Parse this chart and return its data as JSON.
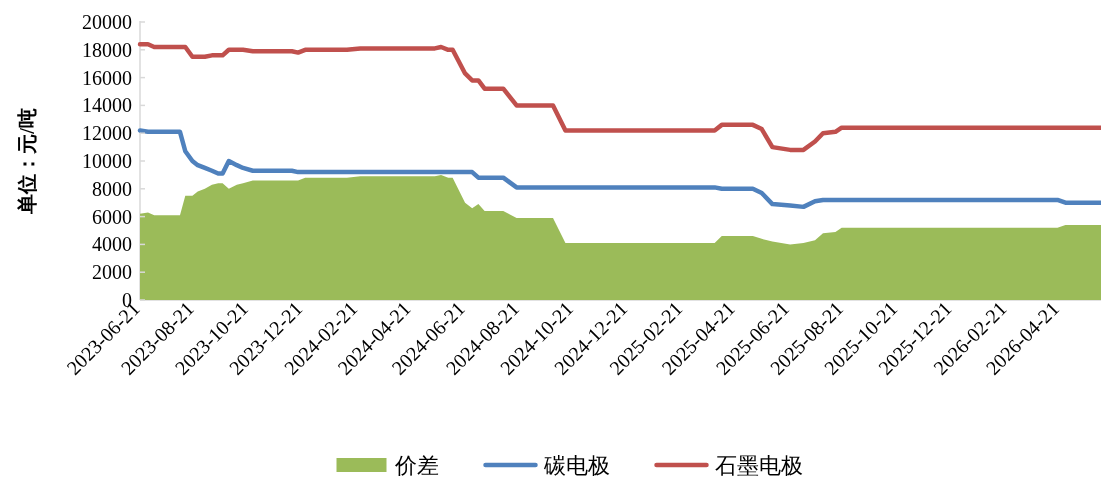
{
  "chart_data": {
    "type": "line",
    "ylabel": "单位：元/吨",
    "x": [
      "2023-06-21",
      "2023-06-30",
      "2023-07-07",
      "2023-08-05",
      "2023-08-11",
      "2023-08-19",
      "2023-08-25",
      "2023-09-02",
      "2023-09-10",
      "2023-09-17",
      "2023-09-22",
      "2023-09-29",
      "2023-10-08",
      "2023-10-15",
      "2023-10-26",
      "2023-12-09",
      "2023-12-16",
      "2023-12-24",
      "2024-02-09",
      "2024-02-24",
      "2024-05-18",
      "2024-05-25",
      "2024-06-02",
      "2024-06-07",
      "2024-06-21",
      "2024-06-29",
      "2024-07-06",
      "2024-07-13",
      "2024-08-03",
      "2024-08-18",
      "2024-09-28",
      "2024-10-12",
      "2025-03-29",
      "2025-04-06",
      "2025-05-11",
      "2025-05-21",
      "2025-06-02",
      "2025-06-22",
      "2025-07-07",
      "2025-07-20",
      "2025-07-29",
      "2025-08-12",
      "2025-08-19",
      "2026-04-19",
      "2026-04-28",
      "2026-06-07"
    ],
    "series": [
      {
        "name": "价差",
        "type": "area",
        "color": "#9bbb59",
        "values": [
          6200,
          6300,
          6100,
          6100,
          7500,
          7500,
          7800,
          8000,
          8300,
          8400,
          8400,
          8000,
          8300,
          8400,
          8600,
          8600,
          8600,
          8800,
          8800,
          8900,
          8900,
          9000,
          8800,
          8800,
          7000,
          6600,
          6900,
          6400,
          6400,
          5900,
          5900,
          4100,
          4100,
          4600,
          4600,
          4400,
          4200,
          4000,
          4100,
          4300,
          4800,
          4900,
          5200,
          5200,
          5400,
          5400
        ]
      },
      {
        "name": "碳电极",
        "color": "#4f81bd",
        "values": [
          12200,
          12100,
          12100,
          12100,
          10700,
          10000,
          9700,
          9500,
          9300,
          9100,
          9100,
          10000,
          9700,
          9500,
          9300,
          9300,
          9200,
          9200,
          9200,
          9200,
          9200,
          9200,
          9200,
          9200,
          9200,
          9200,
          8800,
          8800,
          8800,
          8100,
          8100,
          8100,
          8100,
          8000,
          8000,
          7700,
          6900,
          6800,
          6700,
          7100,
          7200,
          7200,
          7200,
          7200,
          7000,
          7000
        ]
      },
      {
        "name": "石墨电极",
        "color": "#c0504d",
        "values": [
          18400,
          18400,
          18200,
          18200,
          18200,
          17500,
          17500,
          17500,
          17600,
          17600,
          17600,
          18000,
          18000,
          18000,
          17900,
          17900,
          17800,
          18000,
          18000,
          18100,
          18100,
          18200,
          18000,
          18000,
          16300,
          15800,
          15800,
          15200,
          15200,
          14000,
          14000,
          12200,
          12200,
          12600,
          12600,
          12300,
          11000,
          10800,
          10800,
          11400,
          12000,
          12100,
          12400,
          12400,
          12400,
          12400
        ]
      }
    ],
    "ylim": [
      0,
      20000
    ],
    "yticks": [
      0,
      2000,
      4000,
      6000,
      8000,
      10000,
      12000,
      14000,
      16000,
      18000,
      20000
    ],
    "xlim": [
      "2023-06-21",
      "2026-06-07"
    ],
    "xticks": [
      "2023-06-21",
      "2023-08-21",
      "2023-10-21",
      "2023-12-21",
      "2024-02-21",
      "2024-04-21",
      "2024-06-21",
      "2024-08-21",
      "2024-10-21",
      "2024-12-21",
      "2025-02-21",
      "2025-04-21",
      "2025-06-21",
      "2025-08-21",
      "2025-10-21",
      "2025-12-21",
      "2026-02-21",
      "2026-04-21"
    ],
    "legend": "bottom",
    "grid": false,
    "marker": "none",
    "line_style": "solid"
  }
}
